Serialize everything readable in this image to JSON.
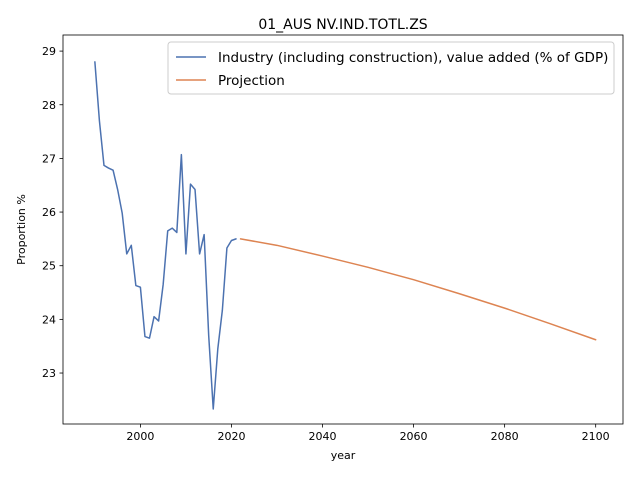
{
  "chart_data": {
    "type": "line",
    "title": "01_AUS NV.IND.TOTL.ZS",
    "xlabel": "year",
    "ylabel": "Proportion %",
    "xlim": [
      1983,
      2106
    ],
    "ylim": [
      22.05,
      29.3
    ],
    "xticks": [
      2000,
      2020,
      2040,
      2060,
      2080,
      2100
    ],
    "yticks": [
      23,
      24,
      25,
      26,
      27,
      28,
      29
    ],
    "grid": false,
    "legend_position": "top-right",
    "series": [
      {
        "name": "Industry (including construction), value added (% of GDP)",
        "color": "#4c72b0",
        "x": [
          1990,
          1991,
          1992,
          1993,
          1994,
          1995,
          1996,
          1997,
          1998,
          1999,
          2000,
          2001,
          2002,
          2003,
          2004,
          2005,
          2006,
          2007,
          2008,
          2009,
          2010,
          2011,
          2012,
          2013,
          2014,
          2015,
          2016,
          2017,
          2018,
          2019,
          2020,
          2021
        ],
        "y": [
          28.8,
          27.7,
          26.87,
          26.82,
          26.78,
          26.42,
          25.98,
          25.22,
          25.38,
          24.63,
          24.6,
          23.68,
          23.65,
          24.05,
          23.97,
          24.65,
          25.65,
          25.7,
          25.62,
          27.07,
          25.22,
          26.52,
          26.42,
          25.22,
          25.58,
          23.7,
          22.33,
          23.45,
          24.17,
          25.33,
          25.47,
          25.5
        ]
      },
      {
        "name": "Projection",
        "color": "#dd8452",
        "x": [
          2022,
          2030,
          2040,
          2050,
          2060,
          2070,
          2080,
          2090,
          2100
        ],
        "y": [
          25.5,
          25.38,
          25.18,
          24.97,
          24.74,
          24.48,
          24.21,
          23.92,
          23.62
        ]
      }
    ]
  }
}
